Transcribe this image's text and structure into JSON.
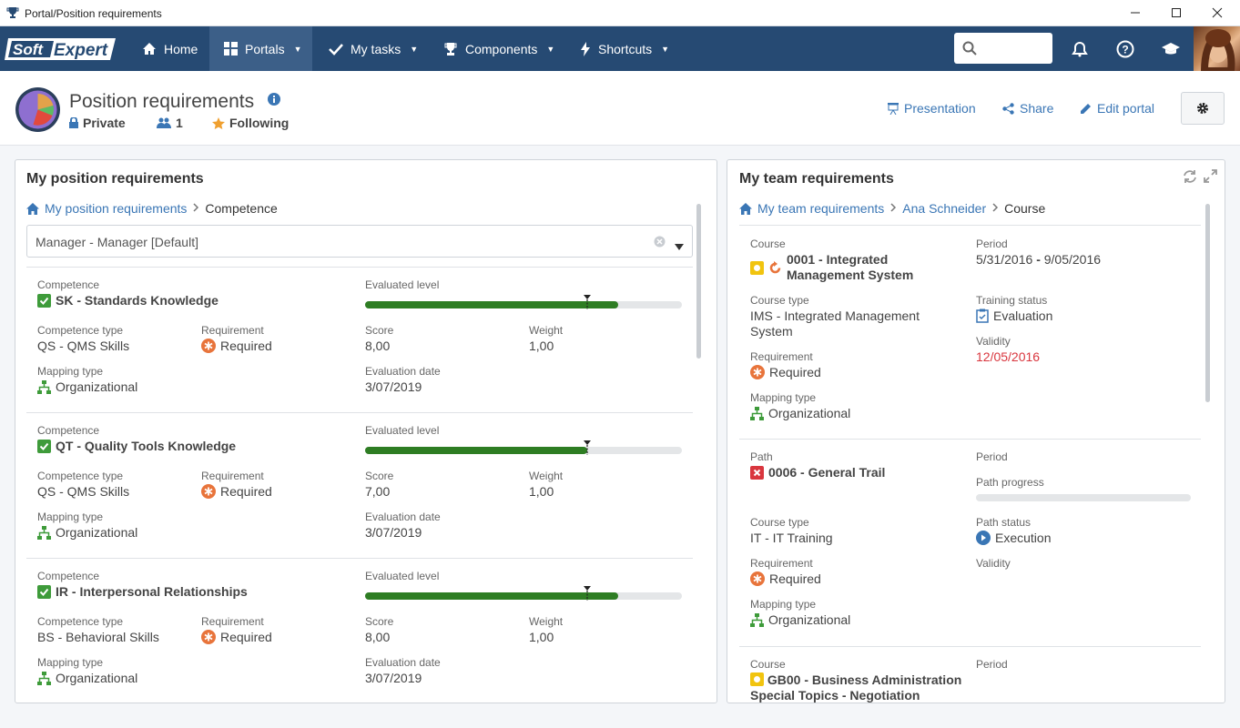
{
  "window": {
    "title": "Portal/Position requirements"
  },
  "nav": {
    "logo": "SoftExpert",
    "home": "Home",
    "portals": "Portals",
    "my_tasks": "My tasks",
    "components": "Components",
    "shortcuts": "Shortcuts"
  },
  "header": {
    "title": "Position requirements",
    "privacy": "Private",
    "members": "1",
    "following": "Following",
    "presentation": "Presentation",
    "share": "Share",
    "edit": "Edit portal"
  },
  "left": {
    "title": "My position requirements",
    "crumb_home": "My position requirements",
    "crumb_current": "Competence",
    "select_value": "Manager - Manager [Default]",
    "labels": {
      "competence": "Competence",
      "evaluated": "Evaluated level",
      "ctype": "Competence type",
      "requirement": "Requirement",
      "score": "Score",
      "weight": "Weight",
      "mapping": "Mapping type",
      "evaldate": "Evaluation date"
    },
    "items": [
      {
        "competence": "SK - Standards Knowledge",
        "ctype": "QS - QMS Skills",
        "requirement": "Required",
        "score": "8,00",
        "weight": "1,00",
        "mapping": "Organizational",
        "evaldate": "3/07/2019",
        "level": 0.8,
        "required_level": 0.7
      },
      {
        "competence": "QT - Quality Tools Knowledge",
        "ctype": "QS - QMS Skills",
        "requirement": "Required",
        "score": "7,00",
        "weight": "1,00",
        "mapping": "Organizational",
        "evaldate": "3/07/2019",
        "level": 0.7,
        "required_level": 0.7
      },
      {
        "competence": "IR - Interpersonal Relationships",
        "ctype": "BS - Behavioral Skills",
        "requirement": "Required",
        "score": "8,00",
        "weight": "1,00",
        "mapping": "Organizational",
        "evaldate": "3/07/2019",
        "level": 0.8,
        "required_level": 0.7
      }
    ]
  },
  "right": {
    "title": "My team requirements",
    "crumb_home": "My team requirements",
    "crumb_person": "Ana Schneider",
    "crumb_current": "Course",
    "labels": {
      "course": "Course",
      "period": "Period",
      "course_type": "Course type",
      "training_status": "Training status",
      "requirement": "Requirement",
      "validity": "Validity",
      "mapping": "Mapping type",
      "path": "Path",
      "path_progress": "Path progress",
      "path_status": "Path status"
    },
    "card1": {
      "course": "0001 - Integrated Management System",
      "period_start": "5/31/2016",
      "period_sep": "-",
      "period_end": "9/05/2016",
      "course_type": "IMS - Integrated Management System",
      "training_status": "Evaluation",
      "requirement": "Required",
      "validity": "12/05/2016",
      "mapping": "Organizational"
    },
    "card2": {
      "path": "0006 - General Trail",
      "course_type": "IT - IT Training",
      "path_status": "Execution",
      "requirement": "Required",
      "mapping": "Organizational",
      "progress": 0
    },
    "card3": {
      "course": "GB00 - Business Administration Special Topics - Negotiation"
    }
  },
  "colors": {
    "nav": "#264a73",
    "accent": "#3a76b5",
    "green": "#2e7d23",
    "required": "#e8743b",
    "invalid": "#d9363e"
  }
}
